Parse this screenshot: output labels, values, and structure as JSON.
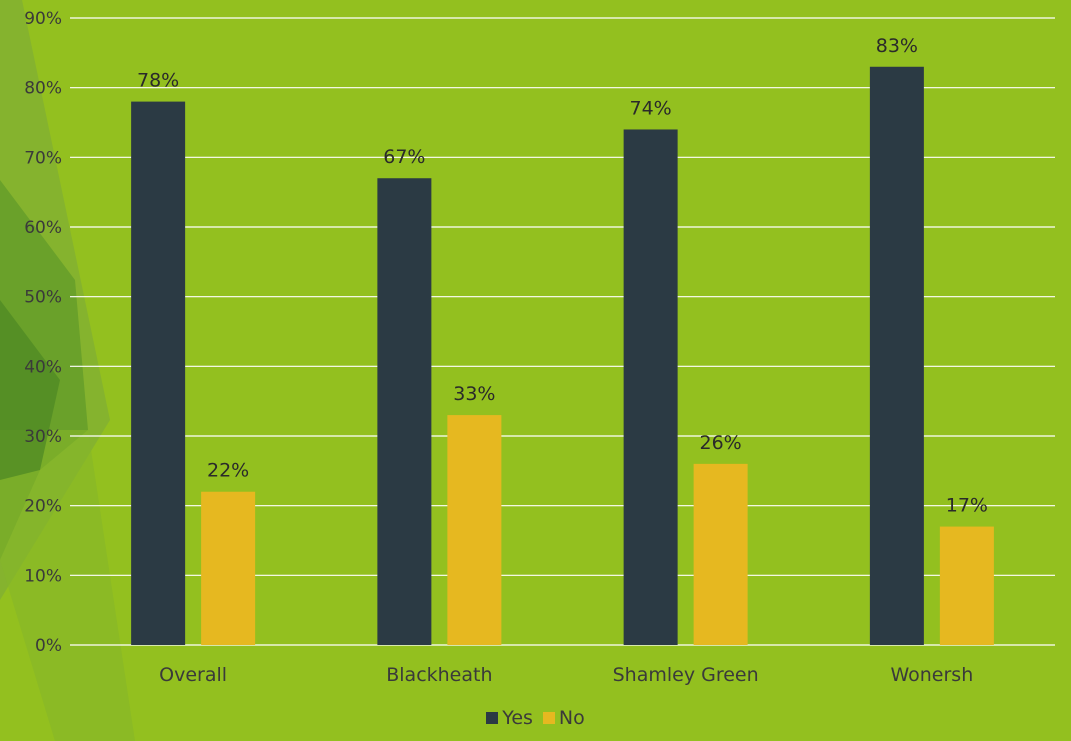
{
  "chart_data": {
    "type": "bar",
    "categories": [
      "Overall",
      "Blackheath",
      "Shamley Green",
      "Wonersh"
    ],
    "series": [
      {
        "name": "Yes",
        "values": [
          78,
          67,
          74,
          83
        ],
        "color": "#2B3A44"
      },
      {
        "name": "No",
        "values": [
          22,
          33,
          26,
          17
        ],
        "color": "#E6B820"
      }
    ],
    "value_labels": [
      [
        "78%",
        "67%",
        "74%",
        "83%"
      ],
      [
        "22%",
        "33%",
        "26%",
        "17%"
      ]
    ],
    "y_ticks": [
      0,
      10,
      20,
      30,
      40,
      50,
      60,
      70,
      80,
      90
    ],
    "y_tick_labels": [
      "0%",
      "10%",
      "20%",
      "30%",
      "40%",
      "50%",
      "60%",
      "70%",
      "80%",
      "90%"
    ],
    "ylim": [
      0,
      90
    ],
    "grid": true,
    "legend_position": "bottom-center"
  },
  "colors": {
    "background": "#93C01F",
    "gridline": "#ffffff",
    "yes": "#2B3A44",
    "no": "#E6B820"
  }
}
